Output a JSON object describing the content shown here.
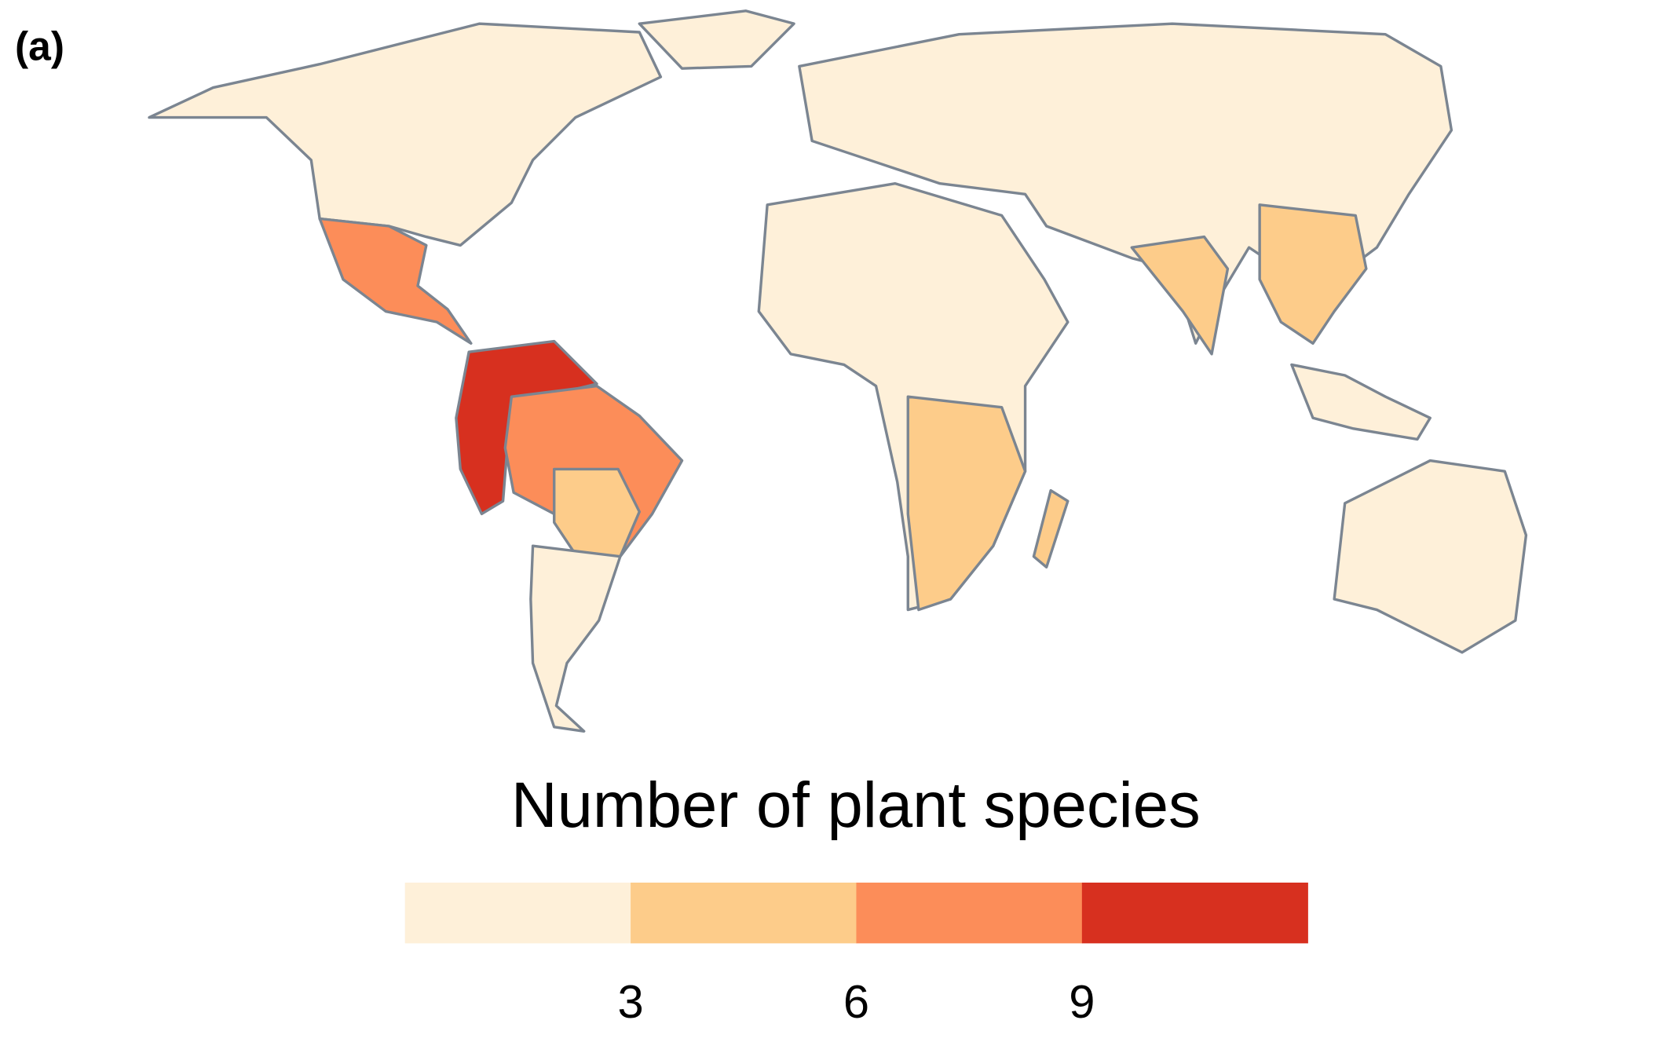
{
  "panel_label": "(a)",
  "legend": {
    "title": "Number of plant species",
    "lim": [
      0,
      12
    ],
    "ticks": [
      3,
      6,
      9
    ],
    "colors": [
      "#fef0d9",
      "#fdcc8a",
      "#fc8d59",
      "#d7301f"
    ]
  }
}
